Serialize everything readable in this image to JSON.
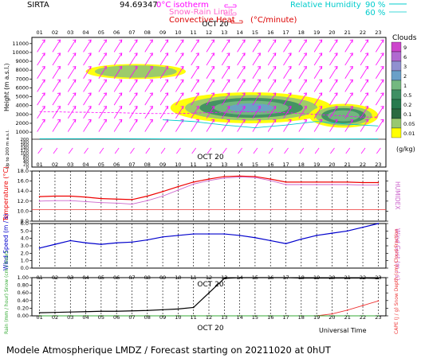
{
  "header": {
    "station": "SIRTA",
    "coords": "94.69347",
    "legend_isotherm": "0°C isotherm",
    "legend_snow": "Snow-Rain Limit",
    "legend_conv": "Convective Heat",
    "legend_conv_unit": "(°C/minute)",
    "legend_rh": "Relative Humidity",
    "rh_90": "90 %",
    "rh_60": "60 %",
    "colors": {
      "isotherm": "#ff00ff",
      "snow": "#ff66cc",
      "conv": "#dd0000",
      "rh": "#00cccc"
    }
  },
  "footer": {
    "universal_time": "Universal Time",
    "model_text": "Modele Atmospherique LMDZ / Forecast starting on 20211020 at 0hUT"
  },
  "hours": [
    "01",
    "02",
    "03",
    "04",
    "05",
    "06",
    "07",
    "08",
    "09",
    "10",
    "11",
    "12",
    "13",
    "14",
    "15",
    "16",
    "17",
    "18",
    "19",
    "20",
    "21",
    "22",
    "23"
  ],
  "bottom_hours": [
    "01",
    "02",
    "03",
    "04",
    "05",
    "06",
    "07",
    "08",
    "09",
    "10",
    "11",
    "12",
    "13",
    "14",
    "15",
    "16",
    "17",
    "18",
    "19",
    "20",
    "21",
    "22",
    "23"
  ],
  "date_label": "OCT 20",
  "chart_data": [
    {
      "type": "heatmap",
      "name": "clouds",
      "ylabel": "Height (m a.s.l.)",
      "ylabel_low": "Up to 200 m a.s.l.",
      "yticks_upper": [
        1000,
        2000,
        3000,
        4000,
        5000,
        6000,
        7000,
        8000,
        9000,
        10000,
        11000
      ],
      "yticks_lower": [
        0,
        20,
        40,
        60,
        80,
        100,
        120,
        140,
        160,
        180,
        200
      ],
      "colorbar_title": "Clouds",
      "colorbar_labels": [
        "9",
        "6",
        "3",
        "2",
        "1",
        "0.5",
        "0.2",
        "0.1",
        "0.05",
        "0.01"
      ],
      "colorbar_colors": [
        "#cc44cc",
        "#b06ad0",
        "#9090d0",
        "#6aa0c8",
        "#74b880",
        "#3f8f63",
        "#267a4e",
        "#2a6a40",
        "#98c870",
        "#ffff00"
      ],
      "colorbar_unit": "(g/kg)",
      "isotherm_0c_m": [
        3300,
        3300,
        3250,
        3250,
        3200,
        3200,
        3150,
        3100,
        3100,
        3100,
        3150,
        3200,
        3250,
        3300,
        3300,
        3250,
        3200,
        3100,
        3000,
        2900,
        2800,
        2700,
        2700
      ],
      "cloud_bands": [
        {
          "hour_start": 4.0,
          "hour_end": 10.5,
          "z_min_m": 7000,
          "z_max_m": 8700,
          "max_gkg": 0.02
        },
        {
          "hour_start": 9.5,
          "hour_end": 20.0,
          "z_min_m": 2000,
          "z_max_m": 5500,
          "max_gkg": 0.2
        },
        {
          "hour_start": 18.5,
          "hour_end": 23.0,
          "z_min_m": 1500,
          "z_max_m": 4200,
          "max_gkg": 0.1
        }
      ]
    },
    {
      "type": "line",
      "name": "temperature",
      "ylabel": "Temperature (°C)",
      "ylabel_right": "HUMIDEX",
      "ylim": [
        8.0,
        18.0
      ],
      "yticks": [
        8.0,
        10.0,
        12.0,
        14.0,
        16.0,
        18.0
      ],
      "series": [
        {
          "color": "#ee0000",
          "values": [
            12.9,
            13.0,
            13.0,
            12.8,
            12.5,
            12.4,
            12.3,
            13.0,
            13.9,
            14.9,
            15.8,
            16.4,
            16.9,
            17.0,
            16.9,
            16.4,
            15.8,
            15.8,
            15.8,
            15.8,
            15.8,
            15.7,
            15.7
          ]
        },
        {
          "color": "#cc66cc",
          "values": [
            12.0,
            12.1,
            12.1,
            11.9,
            11.7,
            11.6,
            11.4,
            12.1,
            13.0,
            14.2,
            15.4,
            16.1,
            16.6,
            16.8,
            16.7,
            16.1,
            15.3,
            15.3,
            15.3,
            15.3,
            15.3,
            15.2,
            15.2
          ]
        }
      ],
      "reference_lines": [
        10.3
      ]
    },
    {
      "type": "line",
      "name": "wind",
      "ylabel": "Wind Speed (m / s)",
      "ylabel_right": "Wind Gust (m / s)",
      "ylim": [
        0.0,
        6.0
      ],
      "yticks": [
        0.0,
        1.0,
        2.0,
        3.0,
        4.0,
        5.0,
        6.0
      ],
      "series": [
        {
          "color": "#0000cc",
          "values": [
            2.7,
            3.2,
            3.7,
            3.4,
            3.2,
            3.4,
            3.5,
            3.8,
            4.2,
            4.4,
            4.6,
            4.6,
            4.6,
            4.4,
            4.1,
            3.7,
            3.3,
            3.9,
            4.4,
            4.7,
            5.0,
            5.5,
            6.0
          ]
        }
      ]
    },
    {
      "type": "line",
      "name": "precipitation",
      "ylabel": "Rain (mm / hour) Snow (cm / hour)",
      "ylabel_right": "CAPE (J / g) Snow Depth (cm) Cloud Fraction",
      "ylim": [
        0.0,
        1.0
      ],
      "yticks": [
        0.0,
        0.2,
        0.4,
        0.6,
        0.8,
        1.0
      ],
      "series": [
        {
          "color": "#000000",
          "values": [
            0.08,
            0.09,
            0.1,
            0.11,
            0.12,
            0.12,
            0.13,
            0.14,
            0.16,
            0.18,
            0.22,
            0.6,
            0.98,
            1.0,
            1.0,
            1.0,
            1.0,
            0.99,
            0.99,
            0.99,
            0.99,
            0.99,
            0.98
          ]
        },
        {
          "color": "#ee3333",
          "values": [
            0.0,
            0.0,
            0.0,
            0.0,
            0.0,
            0.0,
            0.0,
            0.0,
            0.0,
            0.0,
            0.0,
            0.0,
            0.0,
            0.0,
            0.0,
            0.0,
            0.0,
            0.0,
            0.0,
            0.05,
            0.15,
            0.27,
            0.39
          ]
        },
        {
          "color": "#33aa33",
          "values": [
            0.0,
            0.0,
            0.0,
            0.0,
            0.0,
            0.0,
            0.0,
            0.0,
            0.0,
            0.0,
            0.0,
            0.0,
            0.0,
            0.0,
            0.0,
            0.0,
            0.0,
            0.0,
            0.0,
            0.0,
            0.0,
            0.0,
            0.0
          ]
        }
      ]
    }
  ]
}
